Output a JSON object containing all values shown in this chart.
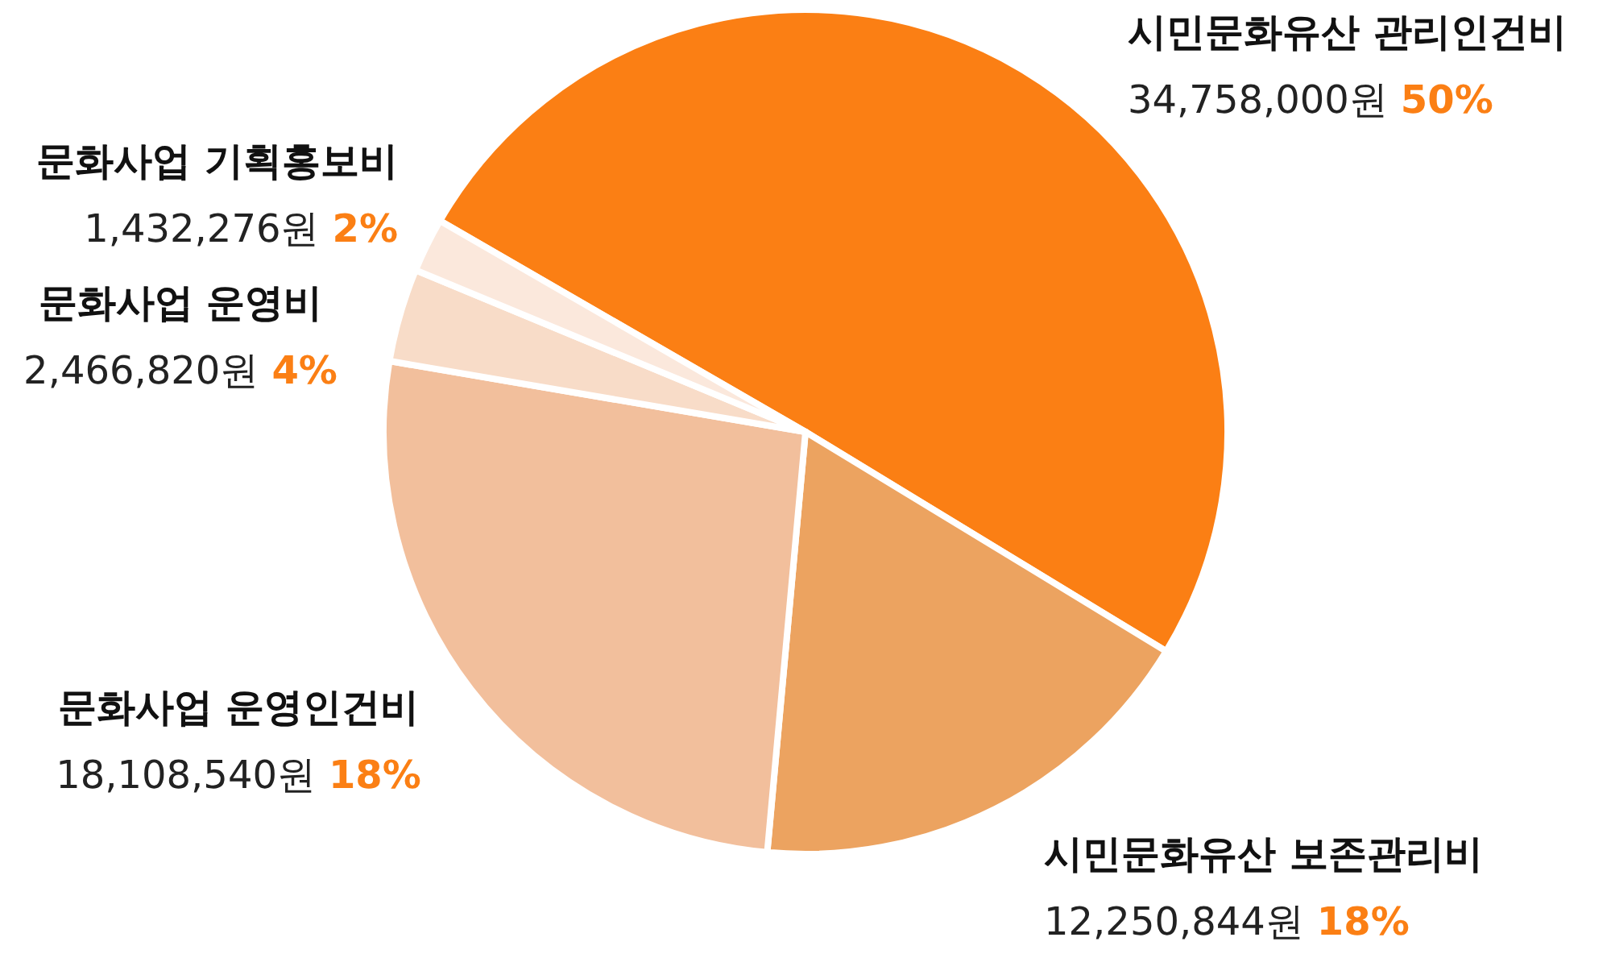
{
  "chart_data": {
    "type": "pie",
    "categories": [
      "시민문화유산 관리인건비",
      "시민문화유산 보존관리비",
      "문화사업 운영인건비",
      "문화사업 운영비",
      "문화사업 기획홍보비"
    ],
    "values": [
      34758000,
      12250844,
      18108540,
      2466820,
      1432276
    ],
    "colors": [
      "#fb7f14",
      "#eca360",
      "#f2bf9c",
      "#f8dcc8",
      "#fbe8dc"
    ],
    "value_labels": [
      "34,758,000원 50%",
      "12,250,844원 18%",
      "18,108,540원 18%",
      "2,466,820원 4%",
      "1,432,276원 2%"
    ]
  }
}
